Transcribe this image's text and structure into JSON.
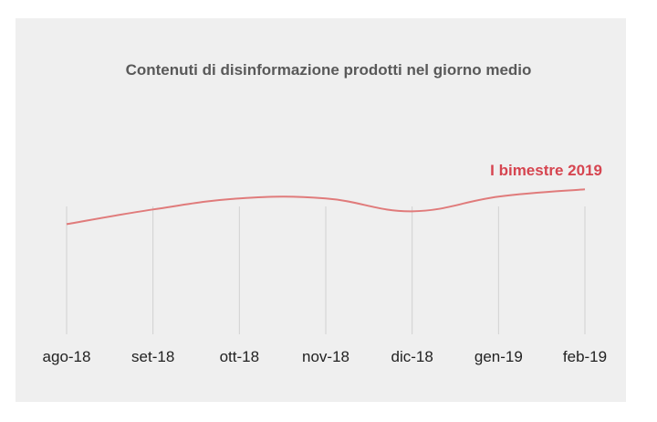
{
  "chart_data": {
    "type": "line",
    "title": "Contenuti di disinformazione prodotti nel giorno medio",
    "categories": [
      "ago-18",
      "set-18",
      "ott-18",
      "nov-18",
      "dic-18",
      "gen-19",
      "feb-19"
    ],
    "series": [
      {
        "values": [
          60,
          68,
          74,
          74,
          67,
          75,
          79
        ]
      }
    ],
    "annotation": "I bimestre 2019",
    "ylim": [
      0,
      100
    ],
    "grid": {
      "vertical": true,
      "horizontal": false
    },
    "colors": {
      "line": "#e07b7b",
      "annotation": "#d64550",
      "grid": "#d0d0d0",
      "background": "#efefef"
    }
  }
}
